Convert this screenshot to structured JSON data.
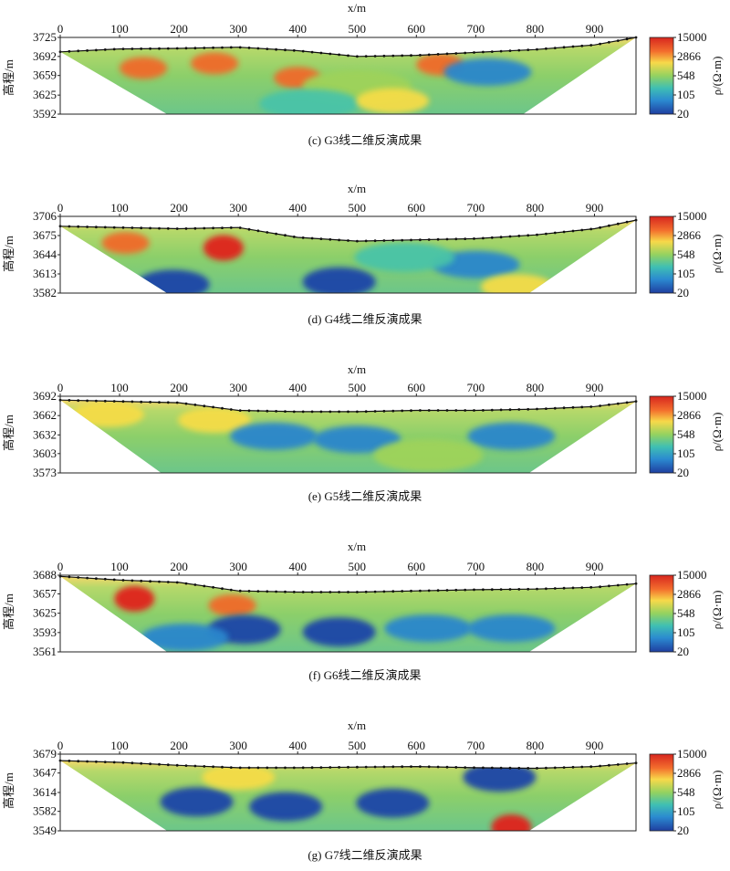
{
  "figure": {
    "panels": [
      {
        "caption": "(c) G3线二维反演成果"
      },
      {
        "caption": "(d) G4线二维反演成果"
      },
      {
        "caption": "(e) G5线二维反演成果"
      },
      {
        "caption": "(f) G6线二维反演成果"
      },
      {
        "caption": "(g) G7线二维反演成果"
      }
    ]
  },
  "chart_data": [
    {
      "type": "heatmap",
      "title": "(c) G3线二维反演成果",
      "xlabel": "x/m",
      "ylabel": "高程/m",
      "colorbar_label": "ρ/(Ω·m)",
      "x_ticks": [
        0,
        100,
        200,
        300,
        400,
        500,
        600,
        700,
        800,
        900
      ],
      "y_ticks": [
        3725,
        3692,
        3659,
        3625,
        3592
      ],
      "xlim": [
        0,
        970
      ],
      "ylim": [
        3592,
        3725
      ],
      "colorbar_ticks": [
        15000,
        2866,
        548,
        105,
        20
      ],
      "surface": [
        [
          0,
          3700
        ],
        [
          100,
          3705
        ],
        [
          200,
          3706
        ],
        [
          300,
          3708
        ],
        [
          400,
          3702
        ],
        [
          500,
          3692
        ],
        [
          600,
          3694
        ],
        [
          700,
          3699
        ],
        [
          800,
          3704
        ],
        [
          900,
          3712
        ],
        [
          970,
          3725
        ]
      ],
      "bottom_left_x": 180,
      "bottom_right_x": 780,
      "anomalies": [
        {
          "x": 140,
          "z": 3672,
          "level": "high"
        },
        {
          "x": 260,
          "z": 3680,
          "level": "high"
        },
        {
          "x": 400,
          "z": 3655,
          "level": "high"
        },
        {
          "x": 640,
          "z": 3678,
          "level": "high"
        },
        {
          "x": 720,
          "z": 3665,
          "level": "low"
        },
        {
          "x": 500,
          "z": 3640,
          "level": "medium"
        },
        {
          "x": 420,
          "z": 3610,
          "level": "medium-low"
        },
        {
          "x": 560,
          "z": 3615,
          "level": "medium-high"
        }
      ]
    },
    {
      "type": "heatmap",
      "title": "(d) G4线二维反演成果",
      "xlabel": "x/m",
      "ylabel": "高程/m",
      "colorbar_label": "ρ/(Ω·m)",
      "x_ticks": [
        0,
        100,
        200,
        300,
        400,
        500,
        600,
        700,
        800,
        900
      ],
      "y_ticks": [
        3706,
        3675,
        3644,
        3613,
        3582
      ],
      "xlim": [
        0,
        970
      ],
      "ylim": [
        3582,
        3706
      ],
      "colorbar_ticks": [
        15000,
        2866,
        548,
        105,
        20
      ],
      "surface": [
        [
          0,
          3690
        ],
        [
          100,
          3688
        ],
        [
          200,
          3686
        ],
        [
          300,
          3688
        ],
        [
          400,
          3672
        ],
        [
          500,
          3666
        ],
        [
          600,
          3668
        ],
        [
          700,
          3670
        ],
        [
          800,
          3676
        ],
        [
          900,
          3686
        ],
        [
          970,
          3700
        ]
      ],
      "bottom_left_x": 180,
      "bottom_right_x": 790,
      "anomalies": [
        {
          "x": 110,
          "z": 3663,
          "level": "high"
        },
        {
          "x": 275,
          "z": 3655,
          "level": "very-high"
        },
        {
          "x": 190,
          "z": 3596,
          "level": "very-low"
        },
        {
          "x": 470,
          "z": 3600,
          "level": "very-low"
        },
        {
          "x": 700,
          "z": 3628,
          "level": "low"
        },
        {
          "x": 770,
          "z": 3592,
          "level": "medium-high"
        },
        {
          "x": 580,
          "z": 3640,
          "level": "medium-low"
        }
      ]
    },
    {
      "type": "heatmap",
      "title": "(e) G5线二维反演成果",
      "xlabel": "x/m",
      "ylabel": "高程/m",
      "colorbar_label": "ρ/(Ω·m)",
      "x_ticks": [
        0,
        100,
        200,
        300,
        400,
        500,
        600,
        700,
        800,
        900
      ],
      "y_ticks": [
        3692,
        3662,
        3632,
        3603,
        3573
      ],
      "xlim": [
        0,
        970
      ],
      "ylim": [
        3573,
        3692
      ],
      "colorbar_ticks": [
        15000,
        2866,
        548,
        105,
        20
      ],
      "surface": [
        [
          0,
          3686
        ],
        [
          100,
          3684
        ],
        [
          200,
          3682
        ],
        [
          300,
          3670
        ],
        [
          400,
          3668
        ],
        [
          500,
          3668
        ],
        [
          600,
          3670
        ],
        [
          700,
          3670
        ],
        [
          800,
          3672
        ],
        [
          900,
          3676
        ],
        [
          970,
          3684
        ]
      ],
      "bottom_left_x": 170,
      "bottom_right_x": 790,
      "anomalies": [
        {
          "x": 80,
          "z": 3664,
          "level": "medium-high"
        },
        {
          "x": 260,
          "z": 3655,
          "level": "medium-high"
        },
        {
          "x": 360,
          "z": 3630,
          "level": "low"
        },
        {
          "x": 500,
          "z": 3625,
          "level": "low"
        },
        {
          "x": 760,
          "z": 3630,
          "level": "low"
        },
        {
          "x": 620,
          "z": 3600,
          "level": "medium"
        }
      ]
    },
    {
      "type": "heatmap",
      "title": "(f) G6线二维反演成果",
      "xlabel": "x/m",
      "ylabel": "高程/m",
      "colorbar_label": "ρ/(Ω·m)",
      "x_ticks": [
        0,
        100,
        200,
        300,
        400,
        500,
        600,
        700,
        800,
        900
      ],
      "y_ticks": [
        3688,
        3657,
        3625,
        3593,
        3561
      ],
      "xlim": [
        0,
        970
      ],
      "ylim": [
        3561,
        3688
      ],
      "colorbar_ticks": [
        15000,
        2866,
        548,
        105,
        20
      ],
      "surface": [
        [
          0,
          3686
        ],
        [
          100,
          3680
        ],
        [
          200,
          3676
        ],
        [
          300,
          3662
        ],
        [
          400,
          3660
        ],
        [
          500,
          3660
        ],
        [
          600,
          3662
        ],
        [
          700,
          3664
        ],
        [
          800,
          3665
        ],
        [
          900,
          3668
        ],
        [
          970,
          3674
        ]
      ],
      "bottom_left_x": 180,
      "bottom_right_x": 790,
      "anomalies": [
        {
          "x": 125,
          "z": 3649,
          "level": "very-high"
        },
        {
          "x": 290,
          "z": 3638,
          "level": "high"
        },
        {
          "x": 310,
          "z": 3598,
          "level": "very-low"
        },
        {
          "x": 470,
          "z": 3594,
          "level": "very-low"
        },
        {
          "x": 620,
          "z": 3600,
          "level": "low"
        },
        {
          "x": 760,
          "z": 3600,
          "level": "low"
        },
        {
          "x": 210,
          "z": 3585,
          "level": "low"
        }
      ]
    },
    {
      "type": "heatmap",
      "title": "(g) G7线二维反演成果",
      "xlabel": "x/m",
      "ylabel": "高程/m",
      "colorbar_label": "ρ/(Ω·m)",
      "x_ticks": [
        0,
        100,
        200,
        300,
        400,
        500,
        600,
        700,
        800,
        900
      ],
      "y_ticks": [
        3679,
        3647,
        3614,
        3582,
        3549
      ],
      "xlim": [
        0,
        970
      ],
      "ylim": [
        3549,
        3679
      ],
      "colorbar_ticks": [
        15000,
        2866,
        548,
        105,
        20
      ],
      "surface": [
        [
          0,
          3668
        ],
        [
          100,
          3665
        ],
        [
          200,
          3660
        ],
        [
          300,
          3656
        ],
        [
          400,
          3656
        ],
        [
          500,
          3657
        ],
        [
          600,
          3658
        ],
        [
          700,
          3656
        ],
        [
          800,
          3655
        ],
        [
          900,
          3658
        ],
        [
          970,
          3664
        ]
      ],
      "bottom_left_x": 180,
      "bottom_right_x": 790,
      "anomalies": [
        {
          "x": 230,
          "z": 3598,
          "level": "very-low"
        },
        {
          "x": 380,
          "z": 3590,
          "level": "very-low"
        },
        {
          "x": 560,
          "z": 3596,
          "level": "very-low"
        },
        {
          "x": 740,
          "z": 3640,
          "level": "very-low"
        },
        {
          "x": 760,
          "z": 3555,
          "level": "very-high"
        },
        {
          "x": 300,
          "z": 3640,
          "level": "medium-high"
        }
      ]
    }
  ]
}
